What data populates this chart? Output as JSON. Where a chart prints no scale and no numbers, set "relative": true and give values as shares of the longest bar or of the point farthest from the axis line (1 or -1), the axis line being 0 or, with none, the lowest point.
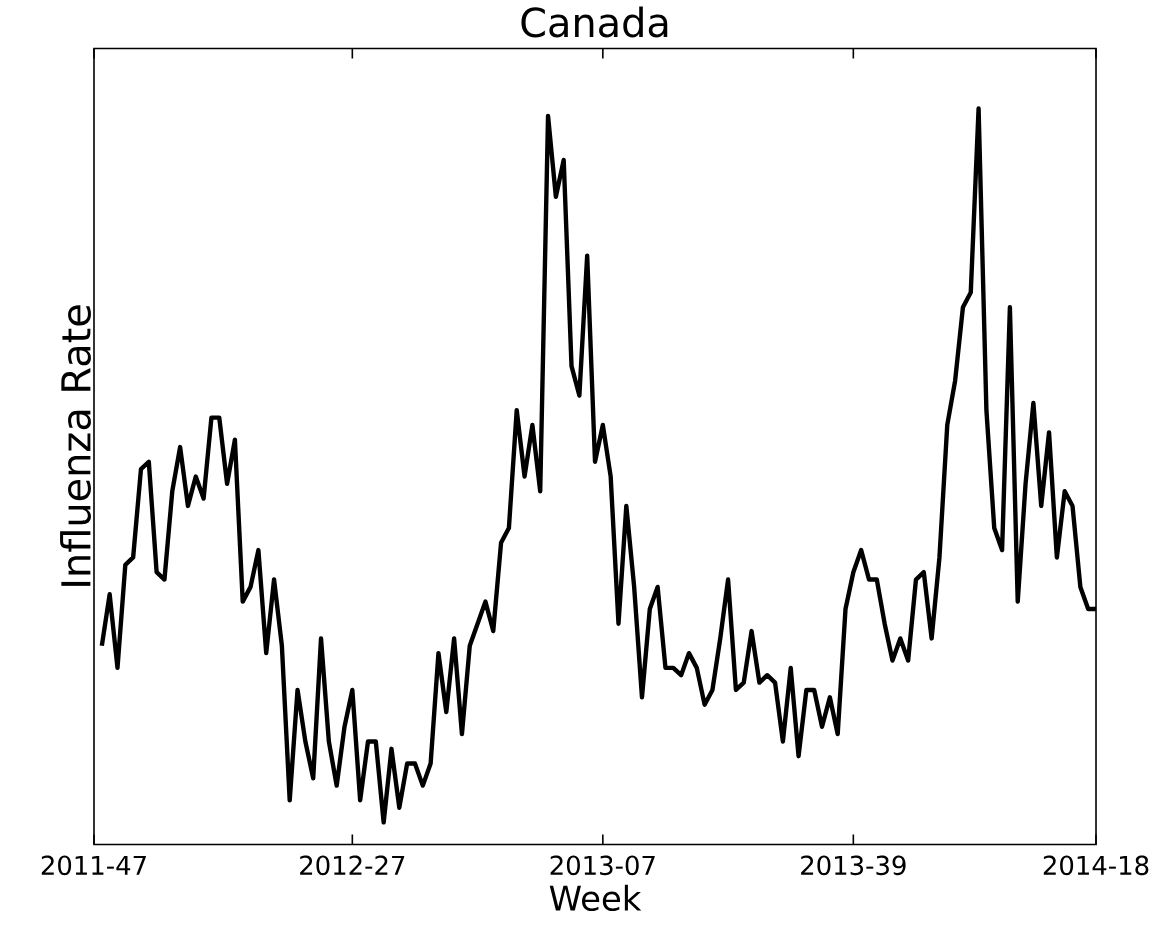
{
  "chart_data": {
    "type": "line",
    "title": "Canada",
    "xlabel": "Week",
    "ylabel": "Influenza Rate",
    "relative": true,
    "grid": false,
    "tick_labels": "x",
    "categories": [
      "2011-47",
      null,
      null,
      null,
      null,
      null,
      null,
      null,
      null,
      null,
      null,
      null,
      null,
      null,
      null,
      null,
      null,
      null,
      null,
      null,
      null,
      null,
      null,
      null,
      null,
      null,
      null,
      null,
      null,
      null,
      null,
      null,
      null,
      "2012-27",
      null,
      null,
      null,
      null,
      null,
      null,
      null,
      null,
      null,
      null,
      null,
      null,
      null,
      null,
      null,
      null,
      null,
      null,
      null,
      null,
      null,
      null,
      null,
      null,
      null,
      null,
      null,
      null,
      null,
      null,
      null,
      "2013-07",
      null,
      null,
      null,
      null,
      null,
      null,
      null,
      null,
      null,
      null,
      null,
      null,
      null,
      null,
      null,
      null,
      null,
      null,
      null,
      null,
      null,
      null,
      null,
      null,
      null,
      null,
      null,
      null,
      null,
      null,
      null,
      "2013-39",
      null,
      null,
      null,
      null,
      null,
      null,
      null,
      null,
      null,
      null,
      null,
      null,
      null,
      null,
      null,
      null,
      null,
      null,
      null,
      null,
      null,
      null,
      null,
      null,
      null,
      null,
      null,
      null,
      null,
      null,
      "2014-18"
    ],
    "series": [
      {
        "color": "#000000",
        "values": [
          null,
          0.27,
          0.34,
          0.24,
          0.38,
          0.39,
          0.51,
          0.52,
          0.37,
          0.36,
          0.48,
          0.54,
          0.46,
          0.5,
          0.47,
          0.58,
          0.58,
          0.49,
          0.55,
          0.33,
          0.35,
          0.4,
          0.26,
          0.36,
          0.27,
          0.06,
          0.21,
          0.14,
          0.09,
          0.28,
          0.14,
          0.08,
          0.16,
          0.21,
          0.06,
          0.14,
          0.14,
          0.03,
          0.13,
          0.05,
          0.11,
          0.11,
          0.08,
          0.11,
          0.26,
          0.18,
          0.28,
          0.15,
          0.27,
          0.3,
          0.33,
          0.29,
          0.41,
          0.43,
          0.59,
          0.5,
          0.57,
          0.48,
          0.99,
          0.88,
          0.93,
          0.65,
          0.61,
          0.8,
          0.52,
          0.57,
          0.5,
          0.3,
          0.46,
          0.35,
          0.2,
          0.32,
          0.35,
          0.24,
          0.24,
          0.23,
          0.26,
          0.24,
          0.19,
          0.21,
          0.28,
          0.36,
          0.21,
          0.22,
          0.29,
          0.22,
          0.23,
          0.22,
          0.14,
          0.24,
          0.12,
          0.21,
          0.21,
          0.16,
          0.2,
          0.15,
          0.32,
          0.37,
          0.4,
          0.36,
          0.36,
          0.3,
          0.25,
          0.28,
          0.25,
          0.36,
          0.37,
          0.28,
          0.39,
          0.57,
          0.63,
          0.73,
          0.75,
          1.0,
          0.59,
          0.43,
          0.4,
          0.73,
          0.33,
          0.49,
          0.6,
          0.46,
          0.56,
          0.39,
          0.48,
          0.46,
          0.35,
          0.32,
          0.32
        ]
      }
    ]
  }
}
